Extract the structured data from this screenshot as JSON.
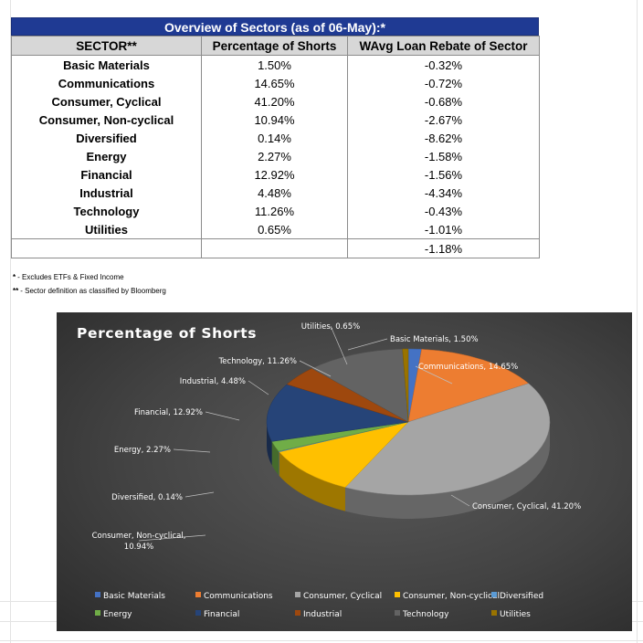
{
  "table": {
    "title": "Overview of Sectors (as of 06-May):*",
    "headers": [
      "SECTOR**",
      "Percentage of Shorts",
      "WAvg Loan Rebate of Sector"
    ],
    "rows": [
      {
        "sector": "Basic Materials",
        "pct": "1.50%",
        "rebate": "-0.32%"
      },
      {
        "sector": "Communications",
        "pct": "14.65%",
        "rebate": "-0.72%"
      },
      {
        "sector": "Consumer, Cyclical",
        "pct": "41.20%",
        "rebate": "-0.68%"
      },
      {
        "sector": "Consumer, Non-cyclical",
        "pct": "10.94%",
        "rebate": "-2.67%"
      },
      {
        "sector": "Diversified",
        "pct": "0.14%",
        "rebate": "-8.62%"
      },
      {
        "sector": "Energy",
        "pct": "2.27%",
        "rebate": "-1.58%"
      },
      {
        "sector": "Financial",
        "pct": "12.92%",
        "rebate": "-1.56%"
      },
      {
        "sector": "Industrial",
        "pct": "4.48%",
        "rebate": "-4.34%"
      },
      {
        "sector": "Technology",
        "pct": "11.26%",
        "rebate": "-0.43%"
      },
      {
        "sector": "Utilities",
        "pct": "0.65%",
        "rebate": "-1.01%"
      }
    ],
    "total_rebate": "-1.18%"
  },
  "footnotes": [
    {
      "mark": "*",
      "text": "- Excludes ETFs & Fixed Income"
    },
    {
      "mark": "**",
      "text": "- Sector definition as classified by Bloomberg"
    }
  ],
  "chart_data": {
    "type": "pie",
    "title": "Percentage of Shorts",
    "categories": [
      "Basic Materials",
      "Communications",
      "Consumer, Cyclical",
      "Consumer, Non-cyclical",
      "Diversified",
      "Energy",
      "Financial",
      "Industrial",
      "Technology",
      "Utilities"
    ],
    "values": [
      1.5,
      14.65,
      41.2,
      10.94,
      0.14,
      2.27,
      12.92,
      4.48,
      11.26,
      0.65
    ],
    "data_labels": [
      "Basic Materials, 1.50%",
      "Communications, 14.65%",
      "Consumer, Cyclical, 41.20%",
      "Consumer, Non-cyclical, 10.94%",
      "Diversified, 0.14%",
      "Energy, 2.27%",
      "Financial, 12.92%",
      "Industrial, 4.48%",
      "Technology, 11.26%",
      "Utilities, 0.65%"
    ],
    "colors": [
      "#4472c4",
      "#ed7d31",
      "#a5a5a5",
      "#ffc000",
      "#5b9bd5",
      "#70ad47",
      "#264478",
      "#9e480e",
      "#636363",
      "#997300"
    ],
    "legend_position": "bottom",
    "style": "3d"
  }
}
